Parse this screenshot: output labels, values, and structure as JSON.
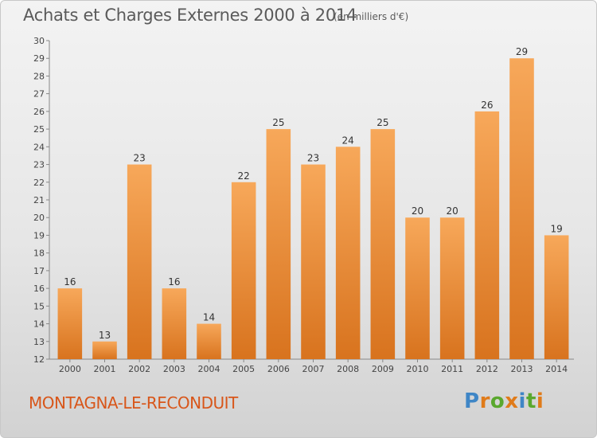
{
  "title": "Achats et Charges Externes 2000 à 2014",
  "subtitle": "(en milliers d'€)",
  "commune": "MONTAGNA-LE-RECONDUIT",
  "logo": {
    "text": "Proxiti",
    "letter_colors": [
      "#3f86c6",
      "#e07b1a",
      "#5aa82e",
      "#e07b1a",
      "#3f86c6",
      "#5aa82e",
      "#e07b1a"
    ]
  },
  "chart_data": {
    "type": "bar",
    "title": "Achats et Charges Externes 2000 à 2014",
    "subtitle": "(en milliers d'€)",
    "xlabel": "",
    "ylabel": "",
    "categories": [
      "2000",
      "2001",
      "2002",
      "2003",
      "2004",
      "2005",
      "2006",
      "2007",
      "2008",
      "2009",
      "2010",
      "2011",
      "2012",
      "2013",
      "2014"
    ],
    "values": [
      16,
      13,
      23,
      16,
      14,
      22,
      25,
      23,
      24,
      25,
      20,
      20,
      26,
      29,
      19
    ],
    "ylim": [
      12,
      30
    ],
    "yticks": [
      12,
      13,
      14,
      15,
      16,
      17,
      18,
      19,
      20,
      21,
      22,
      23,
      24,
      25,
      26,
      27,
      28,
      29,
      30
    ],
    "grid": false,
    "bar_color_top": "#f7a85a",
    "bar_color_bottom": "#d8731e"
  }
}
